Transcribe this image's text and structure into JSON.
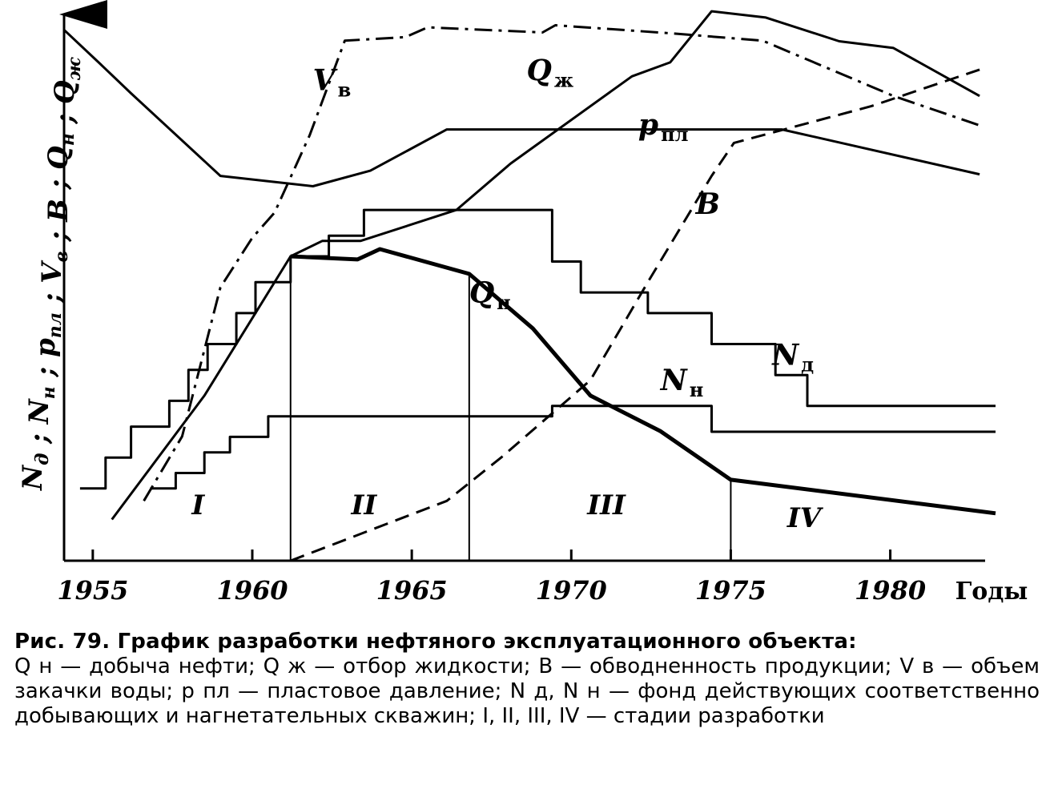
{
  "chart_data": {
    "type": "line",
    "xlabel": "Годы",
    "ylabel": "N_д; N_н; p_пл; V_в; B; Q_н; Q_ж",
    "ylabel_parts": [
      {
        "t": "N",
        "s": "д"
      },
      {
        "t": " ; "
      },
      {
        "t": "N",
        "s": "н"
      },
      {
        "t": " ; "
      },
      {
        "t": "p",
        "s": "пл"
      },
      {
        "t": " ; "
      },
      {
        "t": "V",
        "s": "в"
      },
      {
        "t": " ; "
      },
      {
        "t": "B"
      },
      {
        "t": " ; "
      },
      {
        "t": "Q",
        "s": "н"
      },
      {
        "t": " ; "
      },
      {
        "t": "Q",
        "s": "ж"
      }
    ],
    "xlim": [
      1954.1,
      1983.3
    ],
    "ylim": [
      0,
      100
    ],
    "x_ticks": [
      1955,
      1960,
      1965,
      1970,
      1975,
      1980
    ],
    "x_tick_labels": [
      "1955",
      "1960",
      "1965",
      "1970",
      "1975",
      "1980"
    ],
    "grid": false,
    "legend": "none",
    "series": [
      {
        "name": "V_в",
        "label": "V",
        "sub": "в",
        "style": "dashdot",
        "width": 3,
        "label_at": [
          1961.9,
          91.2
        ],
        "x": [
          1956.6,
          1957.8,
          1959.0,
          1960.0,
          1960.7,
          1961.8,
          1962.9,
          1964.8,
          1965.5,
          1969.1,
          1969.5,
          1973.2,
          1976.0,
          1980.1,
          1982.8
        ],
        "y": [
          11.6,
          24.1,
          53.0,
          62.6,
          67.5,
          82.5,
          100.8,
          101.5,
          103.4,
          102.4,
          103.8,
          102.2,
          100.8,
          90.1,
          84.4
        ]
      },
      {
        "name": "Q_ж",
        "label": "Q",
        "sub": "ж",
        "style": "solid",
        "width": 3,
        "label_at": [
          1968.6,
          93.1
        ],
        "x": [
          1955.6,
          1958.5,
          1961.2,
          1962.2,
          1963.4,
          1966.4,
          1968.1,
          1971.9,
          1973.1,
          1974.4,
          1976.1,
          1978.4,
          1980.1,
          1982.8
        ],
        "y": [
          8.0,
          32.0,
          59.0,
          62.0,
          62.0,
          68.0,
          77.0,
          93.9,
          96.6,
          106.5,
          105.3,
          100.7,
          99.4,
          90.1
        ]
      },
      {
        "name": "p_пл",
        "label": "p",
        "sub": "пл",
        "style": "solid",
        "width": 3,
        "label_at": [
          1972.1,
          82.6
        ],
        "x": [
          1954.1,
          1955.2,
          1956.2,
          1959.0,
          1961.9,
          1963.7,
          1966.1,
          1976.6,
          1982.8
        ],
        "y": [
          102.9,
          96.5,
          90.6,
          74.6,
          72.6,
          75.6,
          83.6,
          83.6,
          74.9
        ]
      },
      {
        "name": "B",
        "label": "B",
        "style": "dashed",
        "width": 3,
        "label_at": [
          1973.9,
          67.2
        ],
        "x": [
          1961.2,
          1966.1,
          1967.8,
          1970.6,
          1972.4,
          1974.4,
          1975.1,
          1979.4,
          1982.8
        ],
        "y": [
          0.0,
          11.6,
          20.0,
          35.0,
          54.0,
          74.6,
          81.0,
          88.1,
          95.2
        ]
      },
      {
        "name": "Q_н",
        "label": "Q",
        "sub": "н",
        "style": "solid",
        "width": 5,
        "label_at": [
          1966.8,
          50.0
        ],
        "x": [
          1961.2,
          1963.3,
          1964.0,
          1966.8,
          1968.8,
          1970.6,
          1972.8,
          1975.0,
          1983.3
        ],
        "y": [
          59.0,
          58.4,
          60.4,
          55.6,
          45.0,
          32.0,
          25.1,
          15.7,
          9.2
        ]
      },
      {
        "name": "N_д",
        "label": "N",
        "sub": "д",
        "style": "step",
        "width": 3,
        "label_at": [
          1976.3,
          38.0
        ],
        "x": [
          1954.6,
          1955.4,
          1956.2,
          1957.4,
          1958.0,
          1958.6,
          1959.5,
          1960.1,
          1961.2,
          1962.4,
          1963.5,
          1969.4,
          1970.3,
          1972.4,
          1974.4,
          1976.4,
          1977.4,
          1983.3
        ],
        "y": [
          14.0,
          20.0,
          26.0,
          31.0,
          37.0,
          42.0,
          48.0,
          54.0,
          59.0,
          63.0,
          68.0,
          58.0,
          52.0,
          48.0,
          42.0,
          36.0,
          30.0,
          30.0
        ]
      },
      {
        "name": "N_н",
        "label": "N",
        "sub": "н",
        "style": "step",
        "width": 3,
        "label_at": [
          1972.8,
          33.1
        ],
        "x": [
          1956.8,
          1957.6,
          1958.5,
          1959.3,
          1960.5,
          1969.4,
          1974.4,
          1983.3
        ],
        "y": [
          14.0,
          17.0,
          21.0,
          24.0,
          28.0,
          30.0,
          25.0,
          25.0
        ]
      }
    ],
    "stage_boundaries": [
      {
        "x": 1961.2,
        "y": 59.0
      },
      {
        "x": 1966.8,
        "y": 55.6
      },
      {
        "x": 1975.0,
        "y": 15.7
      }
    ],
    "stages": [
      {
        "label": "I",
        "x": 1958.3,
        "y": 9.0
      },
      {
        "label": "II",
        "x": 1963.5,
        "y": 9.0
      },
      {
        "label": "III",
        "x": 1971.1,
        "y": 9.0
      },
      {
        "label": "IV",
        "x": 1977.3,
        "y": 6.5
      }
    ]
  },
  "caption": {
    "title": "Рис. 79. График разработки нефтяного эксплуатационного объекта:",
    "body": "Q н — добыча нефти; Q ж — отбор жидкости; B — обводненность продукции; V в — объем закачки воды; p пл — пластовое давление; N д, N н — фонд действующих соответственно добывающих и нагнетательных скважин; I, II, III, IV — стадии разработки"
  }
}
